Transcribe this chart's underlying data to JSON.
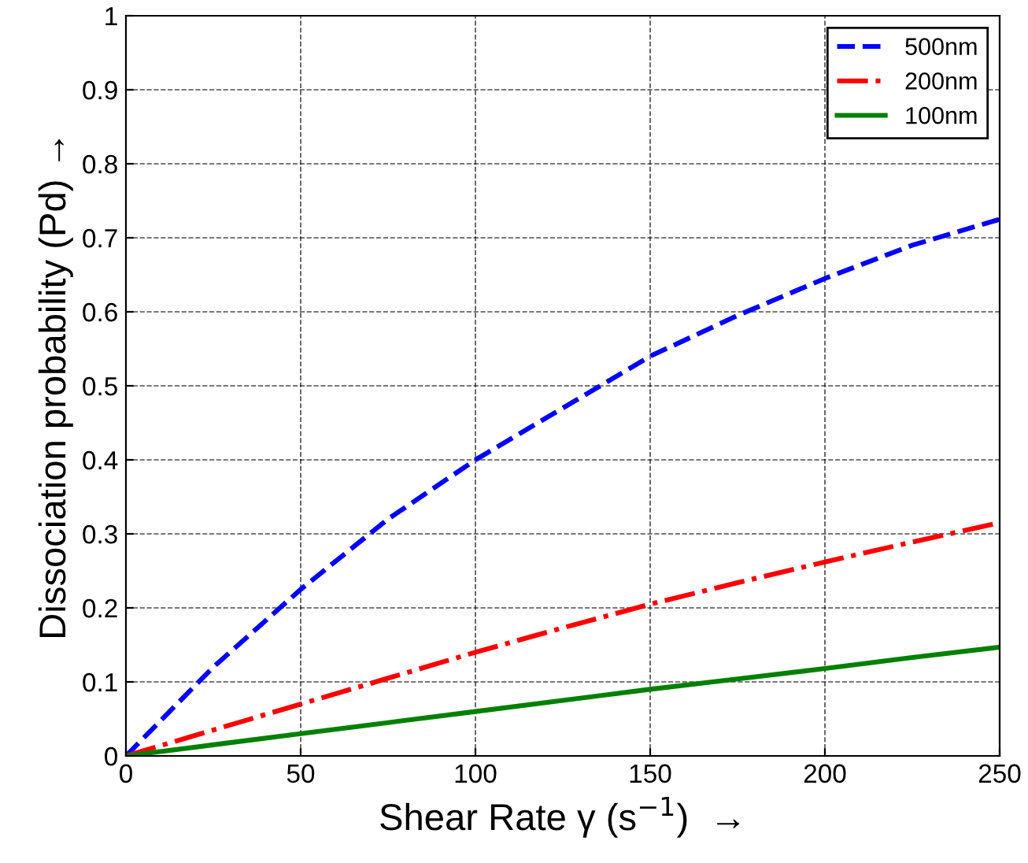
{
  "chart_data": {
    "type": "line",
    "xlabel": "Shear Rate γ (s$^{−1}$)  →",
    "ylabel": "Dissociation probability (Pd) →",
    "x": [
      0,
      25,
      50,
      75,
      100,
      125,
      150,
      175,
      200,
      225,
      250
    ],
    "series": [
      {
        "name": "500nm",
        "color": "#0000ff",
        "line_style": "dashed",
        "values": [
          0,
          0.12,
          0.225,
          0.32,
          0.4,
          0.47,
          0.54,
          0.595,
          0.645,
          0.69,
          0.725
        ]
      },
      {
        "name": "200nm",
        "color": "#ff0000",
        "line_style": "dashdot",
        "values": [
          0,
          0.035,
          0.07,
          0.105,
          0.14,
          0.173,
          0.205,
          0.234,
          0.262,
          0.289,
          0.315
        ]
      },
      {
        "name": "100nm",
        "color": "#008000",
        "line_style": "solid",
        "values": [
          0,
          0.015,
          0.03,
          0.045,
          0.06,
          0.075,
          0.09,
          0.104,
          0.118,
          0.133,
          0.147
        ]
      }
    ],
    "xlim": [
      0,
      250
    ],
    "ylim": [
      0,
      1
    ],
    "xticks": [
      0,
      50,
      100,
      150,
      200,
      250
    ],
    "yticks": [
      0,
      0.1,
      0.2,
      0.3,
      0.4,
      0.5,
      0.6,
      0.7,
      0.8,
      0.9,
      1
    ],
    "grid": true,
    "legend": "top right"
  }
}
